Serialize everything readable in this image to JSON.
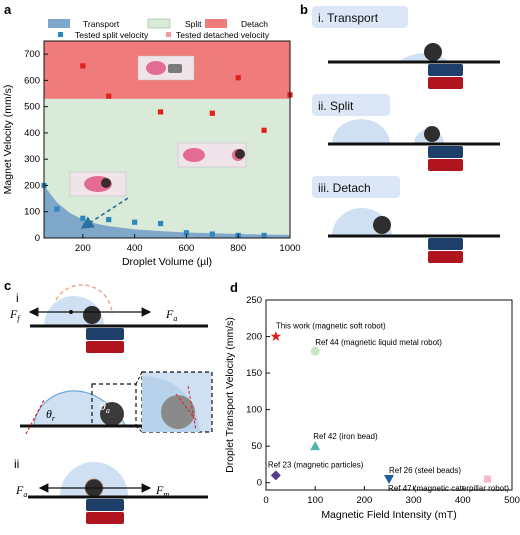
{
  "panels": {
    "a": "a",
    "b": "b",
    "c": "c",
    "d": "d",
    "c_i": "i",
    "c_ii": "ii"
  },
  "panel_b": {
    "transport": "i. Transport",
    "split": "ii. Split",
    "detach": "iii. Detach"
  },
  "panel_c": {
    "f_f": "F",
    "f_f_sub": "f",
    "f_a": "F",
    "f_a_sub": "a",
    "theta_r": "θ",
    "theta_r_sub": "r",
    "theta_a": "θ",
    "theta_a_sub": "a",
    "f_a2": "F",
    "f_a2_sub": "a",
    "f_m": "F",
    "f_m_sub": "m"
  },
  "colors": {
    "transport": "#7ea7c9",
    "split": "#d9ead8",
    "detach": "#f07b7b",
    "split_marker": "#2e86c1",
    "detach_marker": "#e02020",
    "droplet": "#cfe0f3",
    "magnet_blue": "#1f3f6b",
    "magnet_red": "#b0141e"
  },
  "chart_data": [
    {
      "type": "scatter",
      "xlabel": "Droplet Volume (µl)",
      "ylabel": "Magnet Velocity (mm/s)",
      "xlim": [
        50,
        1000
      ],
      "ylim": [
        0,
        750
      ],
      "xticks": [
        200,
        400,
        600,
        800,
        1000
      ],
      "yticks": [
        0,
        100,
        200,
        300,
        400,
        500,
        600,
        700
      ],
      "regions": [
        {
          "name": "Transport",
          "color": "#7ea7c9"
        },
        {
          "name": "Split",
          "color": "#d9ead8"
        },
        {
          "name": "Detach",
          "color": "#f07b7b"
        }
      ],
      "detach_threshold": 530,
      "transport_boundary": {
        "x": [
          50,
          100,
          150,
          200,
          250,
          300,
          400,
          500,
          600,
          700,
          800,
          900,
          1000
        ],
        "y": [
          200,
          135,
          95,
          70,
          55,
          45,
          33,
          26,
          21,
          18,
          15,
          13,
          12
        ]
      },
      "series": [
        {
          "name": "Tested split velocity",
          "marker": "square",
          "color": "#2e86c1",
          "x": [
            50,
            100,
            200,
            300,
            400,
            500,
            600,
            700,
            800,
            900
          ],
          "y": [
            200,
            110,
            75,
            70,
            60,
            55,
            20,
            15,
            10,
            10
          ]
        },
        {
          "name": "Tested detached velocity",
          "marker": "square",
          "color": "#e02020",
          "x": [
            200,
            300,
            500,
            700,
            800,
            900,
            1000
          ],
          "y": [
            655,
            540,
            480,
            475,
            610,
            410,
            545
          ]
        }
      ],
      "legend": [
        "Transport",
        "Split",
        "Detach",
        "Tested split velocity",
        "Tested detached velocity"
      ]
    },
    {
      "type": "scatter",
      "xlabel": "Magnetic Field Intensity (mT)",
      "ylabel": "Droplet Transport Velocity (mm/s)",
      "xlim": [
        0,
        500
      ],
      "ylim": [
        -10,
        250
      ],
      "xticks": [
        0,
        100,
        200,
        300,
        400,
        500
      ],
      "yticks": [
        0,
        50,
        100,
        150,
        200,
        250
      ],
      "points": [
        {
          "label": "This work (magnetic soft robot)",
          "x": 20,
          "y": 200,
          "marker": "star",
          "color": "#e02020"
        },
        {
          "label": "Ref 44 (magnetic liquid metal robot)",
          "x": 100,
          "y": 180,
          "marker": "circle",
          "color": "#c9e6c3"
        },
        {
          "label": "Ref 42 (iron bead)",
          "x": 100,
          "y": 50,
          "marker": "triangle-up",
          "color": "#4db6a8"
        },
        {
          "label": "Ref 23 (magnetic particles)",
          "x": 20,
          "y": 10,
          "marker": "diamond",
          "color": "#5a3d8a"
        },
        {
          "label": "Ref 26 (steel beads)",
          "x": 250,
          "y": 5,
          "marker": "triangle-down",
          "color": "#1f5fa0"
        },
        {
          "label": "Ref 47 (magnetic caterpillar robot)",
          "x": 450,
          "y": 5,
          "marker": "square",
          "color": "#f4b8c8"
        }
      ]
    }
  ]
}
